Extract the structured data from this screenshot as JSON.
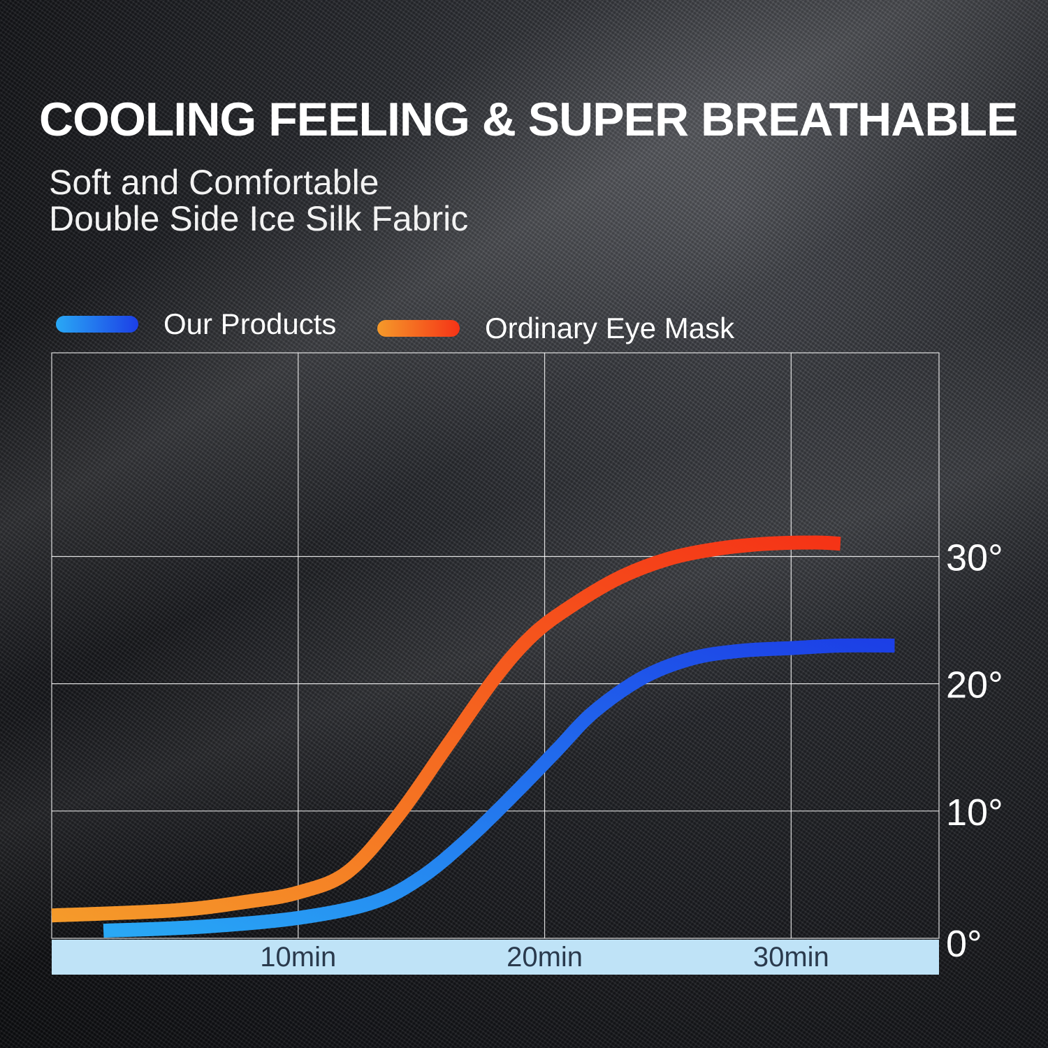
{
  "page": {
    "title": "COOLING FEELING & SUPER BREATHABLE",
    "subtitle_line1": "Soft and Comfortable",
    "subtitle_line2": "Double Side Ice Silk Fabric"
  },
  "chart_data": {
    "type": "line",
    "title": "",
    "xlabel": "",
    "ylabel": "",
    "xlim": [
      0,
      36
    ],
    "ylim": [
      0,
      46
    ],
    "x_ticks": [
      {
        "value": 10,
        "label": "10min"
      },
      {
        "value": 20,
        "label": "20min"
      },
      {
        "value": 30,
        "label": "30min"
      }
    ],
    "y_ticks": [
      {
        "value": 0,
        "label": "0°"
      },
      {
        "value": 10,
        "label": "10°"
      },
      {
        "value": 20,
        "label": "20°"
      },
      {
        "value": 30,
        "label": "30°"
      }
    ],
    "grid": true,
    "legend_position": "top-left",
    "series": [
      {
        "name": "Our Products",
        "color_start": "#29a8f5",
        "color_end": "#1c3fe6",
        "x": [
          2.1,
          6,
          10,
          13,
          15,
          17,
          19,
          20.5,
          22,
          24,
          26,
          28,
          30,
          32,
          34.2
        ],
        "y": [
          0.6,
          0.9,
          1.6,
          2.8,
          4.8,
          8.0,
          11.8,
          14.8,
          17.8,
          20.5,
          22.0,
          22.6,
          22.8,
          23.0,
          23.0
        ]
      },
      {
        "name": "Ordinary Eye Mask",
        "color_start": "#f59a2a",
        "color_end": "#f53316",
        "x": [
          0,
          5,
          8,
          10,
          12,
          14,
          16,
          18,
          19.5,
          21,
          23,
          25,
          27,
          29,
          31,
          32
        ],
        "y": [
          1.8,
          2.2,
          2.9,
          3.6,
          5.2,
          9.5,
          15.0,
          20.5,
          23.8,
          26.0,
          28.3,
          29.8,
          30.6,
          31.0,
          31.1,
          31.0
        ]
      }
    ]
  }
}
